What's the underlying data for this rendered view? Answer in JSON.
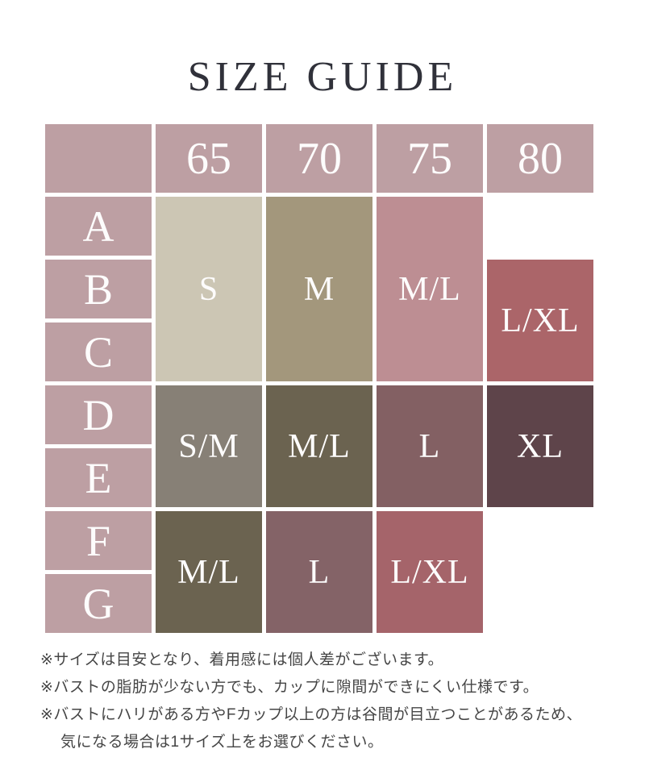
{
  "title": "SIZE GUIDE",
  "table": {
    "header_bg": "#bd9fa3",
    "header_text_color": "#ffffff",
    "columns": [
      "65",
      "70",
      "75",
      "80"
    ],
    "row_labels": [
      "A",
      "B",
      "C",
      "D",
      "E",
      "F",
      "G"
    ],
    "cells": {
      "s": {
        "label": "S",
        "bg": "#ccc6b4",
        "column": "65",
        "cup_rows": "A-C"
      },
      "m": {
        "label": "M",
        "bg": "#a3977c",
        "column": "70",
        "cup_rows": "A-C"
      },
      "ml_abc": {
        "label": "M/L",
        "bg": "#bd8e93",
        "column": "75",
        "cup_rows": "A-C"
      },
      "lxl_bc": {
        "label": "L/XL",
        "bg": "#ab6569",
        "column": "80",
        "cup_rows": "B-C"
      },
      "sm": {
        "label": "S/M",
        "bg": "#878076",
        "column": "65",
        "cup_rows": "D-E"
      },
      "ml_de": {
        "label": "M/L",
        "bg": "#6b6350",
        "column": "70",
        "cup_rows": "D-E"
      },
      "l_de": {
        "label": "L",
        "bg": "#836063",
        "column": "75",
        "cup_rows": "D-E"
      },
      "xl": {
        "label": "XL",
        "bg": "#5e444a",
        "column": "80",
        "cup_rows": "D-E"
      },
      "ml_fg": {
        "label": "M/L",
        "bg": "#6b6350",
        "column": "65",
        "cup_rows": "F-G"
      },
      "l_fg": {
        "label": "L",
        "bg": "#846367",
        "column": "70",
        "cup_rows": "F-G"
      },
      "lxl_fg": {
        "label": "L/XL",
        "bg": "#a5646a",
        "column": "75",
        "cup_rows": "F-G"
      }
    }
  },
  "notes": [
    {
      "text": "※サイズは目安となり、着用感には個人差がございます。"
    },
    {
      "text": "※バストの脂肪が少ない方でも、カップに隙間ができにくい仕様です。"
    },
    {
      "text": "※バストにハリがある方やFカップ以上の方は谷間が目立つことがあるため、"
    },
    {
      "text": "気になる場合は1サイズ上をお選びください。",
      "indent": true
    }
  ]
}
